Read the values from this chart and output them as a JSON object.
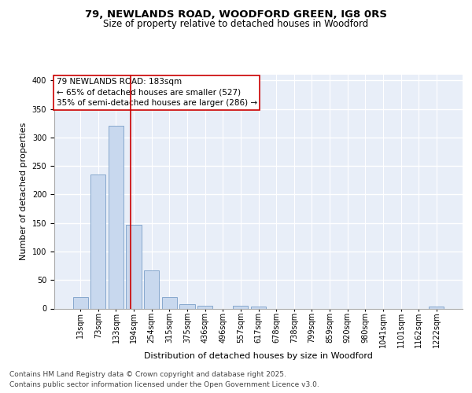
{
  "title_line1": "79, NEWLANDS ROAD, WOODFORD GREEN, IG8 0RS",
  "title_line2": "Size of property relative to detached houses in Woodford",
  "xlabel": "Distribution of detached houses by size in Woodford",
  "ylabel": "Number of detached properties",
  "categories": [
    "13sqm",
    "73sqm",
    "133sqm",
    "194sqm",
    "254sqm",
    "315sqm",
    "375sqm",
    "436sqm",
    "496sqm",
    "557sqm",
    "617sqm",
    "678sqm",
    "738sqm",
    "799sqm",
    "859sqm",
    "920sqm",
    "980sqm",
    "1041sqm",
    "1101sqm",
    "1162sqm",
    "1222sqm"
  ],
  "values": [
    20,
    235,
    320,
    147,
    67,
    20,
    8,
    5,
    0,
    5,
    3,
    0,
    0,
    0,
    0,
    0,
    0,
    0,
    0,
    0,
    3
  ],
  "bar_color": "#c8d8ee",
  "bar_edge_color": "#7a9fc8",
  "vline_x": 2.82,
  "vline_color": "#cc0000",
  "annotation_text": "79 NEWLANDS ROAD: 183sqm\n← 65% of detached houses are smaller (527)\n35% of semi-detached houses are larger (286) →",
  "annotation_box_color": "#ffffff",
  "annotation_box_edge": "#cc0000",
  "background_color": "#ffffff",
  "plot_background": "#e8eef8",
  "grid_color": "#ffffff",
  "ylim": [
    0,
    410
  ],
  "yticks": [
    0,
    50,
    100,
    150,
    200,
    250,
    300,
    350,
    400
  ],
  "footer_line1": "Contains HM Land Registry data © Crown copyright and database right 2025.",
  "footer_line2": "Contains public sector information licensed under the Open Government Licence v3.0.",
  "title_fontsize": 9.5,
  "subtitle_fontsize": 8.5,
  "label_fontsize": 8,
  "tick_fontsize": 7,
  "footer_fontsize": 6.5,
  "annot_fontsize": 7.5
}
